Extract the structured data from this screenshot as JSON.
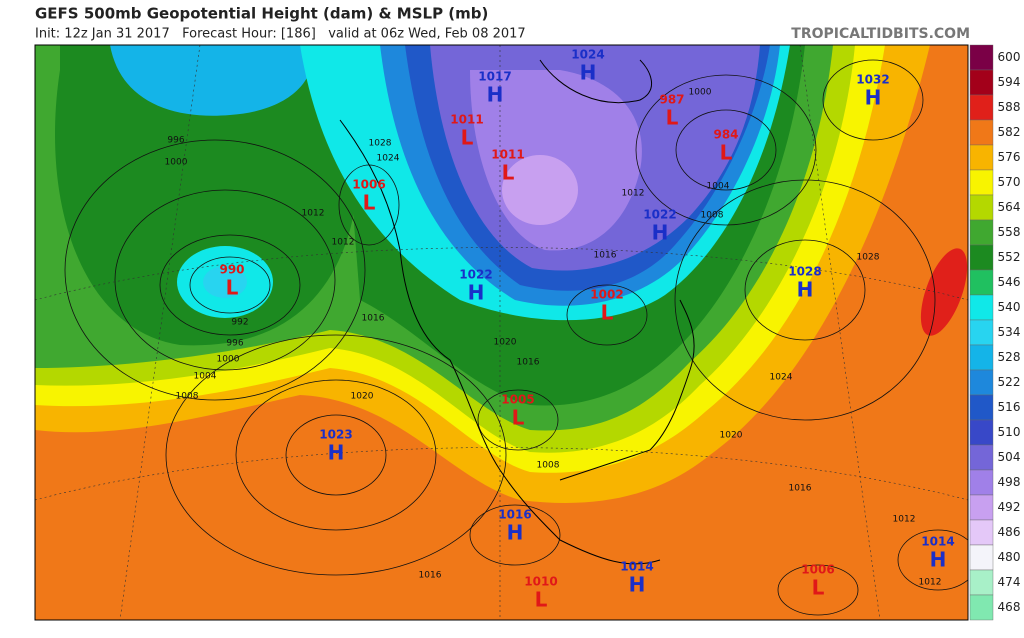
{
  "header": {
    "title": "GEFS 500mb Geopotential Height (dam) & MSLP (mb)",
    "subtitle": "Init: 12z Jan 31 2017   Forecast Hour: [186]   valid at 06z Wed, Feb 08 2017",
    "brand": "TROPICALTIDBITS.COM"
  },
  "colorbar": [
    {
      "label": "600",
      "color": "#7a0046"
    },
    {
      "label": "594",
      "color": "#a3001a"
    },
    {
      "label": "588",
      "color": "#e0201a"
    },
    {
      "label": "582",
      "color": "#f07818"
    },
    {
      "label": "576",
      "color": "#f8b400"
    },
    {
      "label": "570",
      "color": "#f8f400"
    },
    {
      "label": "564",
      "color": "#b4d800"
    },
    {
      "label": "558",
      "color": "#40a830"
    },
    {
      "label": "552",
      "color": "#1c8a20"
    },
    {
      "label": "546",
      "color": "#20c060"
    },
    {
      "label": "540",
      "color": "#10e8e8"
    },
    {
      "label": "534",
      "color": "#28d4f0"
    },
    {
      "label": "528",
      "color": "#14b4e8"
    },
    {
      "label": "522",
      "color": "#1e88dc"
    },
    {
      "label": "516",
      "color": "#2058c8"
    },
    {
      "label": "510",
      "color": "#3848c8"
    },
    {
      "label": "504",
      "color": "#7466d8"
    },
    {
      "label": "498",
      "color": "#a080e8"
    },
    {
      "label": "492",
      "color": "#c8a0f0"
    },
    {
      "label": "486",
      "color": "#e4c8f8"
    },
    {
      "label": "480",
      "color": "#f4f4fa"
    },
    {
      "label": "474",
      "color": "#a8f0c8"
    },
    {
      "label": "468",
      "color": "#80e8b0"
    }
  ],
  "pressure_centers": [
    {
      "type": "H",
      "value": 1017
    },
    {
      "type": "L",
      "value": 1011
    },
    {
      "type": "L",
      "value": 1011
    },
    {
      "type": "H",
      "value": 1024
    },
    {
      "type": "L",
      "value": 987
    },
    {
      "type": "L",
      "value": 984
    },
    {
      "type": "H",
      "value": 1032
    },
    {
      "type": "L",
      "value": 1006
    },
    {
      "type": "L",
      "value": 990
    },
    {
      "type": "H",
      "value": 1022
    },
    {
      "type": "H",
      "value": 1022
    },
    {
      "type": "L",
      "value": 1002
    },
    {
      "type": "H",
      "value": 1028
    },
    {
      "type": "L",
      "value": 1005
    },
    {
      "type": "H",
      "value": 1023
    },
    {
      "type": "H",
      "value": 1016
    },
    {
      "type": "H",
      "value": 1014
    },
    {
      "type": "L",
      "value": 1010
    },
    {
      "type": "L",
      "value": 1006
    },
    {
      "type": "H",
      "value": 1014
    }
  ],
  "contour_labels": [
    996,
    1000,
    1012,
    1012,
    992,
    996,
    1000,
    1004,
    1008,
    1016,
    1020,
    1008,
    1016,
    1016,
    1024,
    1028,
    1020,
    1024,
    1028,
    1020,
    1016,
    1012,
    1012,
    1008,
    1004,
    1000,
    1012,
    1016
  ]
}
